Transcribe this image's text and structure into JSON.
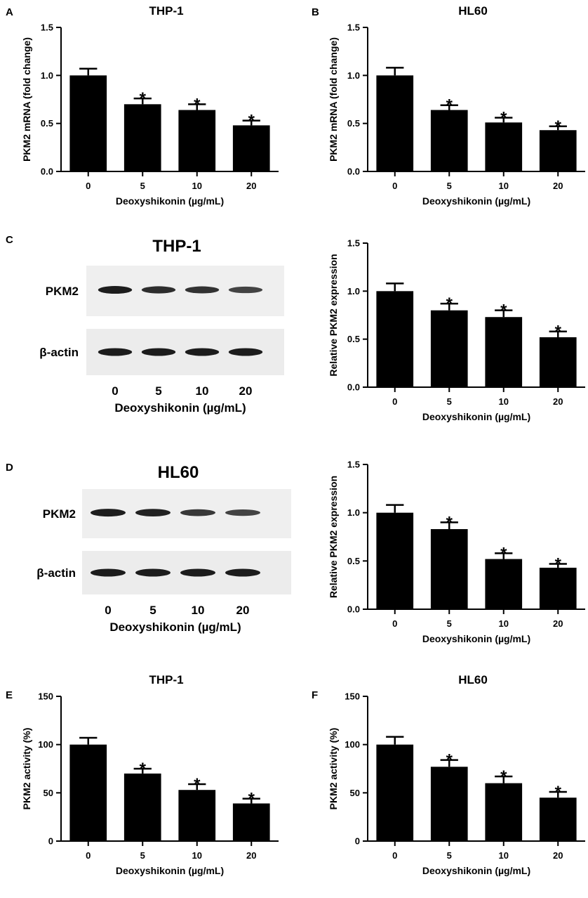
{
  "panel_letters": [
    "A",
    "B",
    "C",
    "D",
    "E",
    "F"
  ],
  "bar_color": "#000000",
  "chart_data": [
    {
      "id": "A",
      "type": "bar",
      "title": "THP-1",
      "categories": [
        "0",
        "5",
        "10",
        "20"
      ],
      "values": [
        1.0,
        0.7,
        0.64,
        0.48
      ],
      "errors": [
        0.07,
        0.06,
        0.06,
        0.05
      ],
      "significance": [
        "",
        "*",
        "*",
        "*"
      ],
      "xlabel": "Deoxyshikonin (µg/mL)",
      "ylabel": "PKM2 mRNA (fold change)",
      "ylim": [
        0,
        1.5
      ],
      "yticks": [
        "0.0",
        "0.5",
        "1.0",
        "1.5"
      ],
      "grid": false
    },
    {
      "id": "B",
      "type": "bar",
      "title": "HL60",
      "categories": [
        "0",
        "5",
        "10",
        "20"
      ],
      "values": [
        1.0,
        0.64,
        0.51,
        0.43
      ],
      "errors": [
        0.08,
        0.05,
        0.05,
        0.04
      ],
      "significance": [
        "",
        "*",
        "*",
        "*"
      ],
      "xlabel": "Deoxyshikonin (µg/mL)",
      "ylabel": "PKM2 mRNA (fold change)",
      "ylim": [
        0,
        1.5
      ],
      "yticks": [
        "0.0",
        "0.5",
        "1.0",
        "1.5"
      ],
      "grid": false
    },
    {
      "id": "C-bar",
      "type": "bar",
      "title": "",
      "categories": [
        "0",
        "5",
        "10",
        "20"
      ],
      "values": [
        1.0,
        0.8,
        0.73,
        0.52
      ],
      "errors": [
        0.08,
        0.07,
        0.07,
        0.06
      ],
      "significance": [
        "",
        "*",
        "*",
        "*"
      ],
      "xlabel": "Deoxyshikonin (µg/mL)",
      "ylabel": "Relative PKM2 expression",
      "ylim": [
        0,
        1.5
      ],
      "yticks": [
        "0.0",
        "0.5",
        "1.0",
        "1.5"
      ],
      "grid": false
    },
    {
      "id": "D-bar",
      "type": "bar",
      "title": "",
      "categories": [
        "0",
        "5",
        "10",
        "20"
      ],
      "values": [
        1.0,
        0.83,
        0.52,
        0.43
      ],
      "errors": [
        0.08,
        0.07,
        0.06,
        0.04
      ],
      "significance": [
        "",
        "*",
        "*",
        "*"
      ],
      "xlabel": "Deoxyshikonin (µg/mL)",
      "ylabel": "Relative PKM2 expression",
      "ylim": [
        0,
        1.5
      ],
      "yticks": [
        "0.0",
        "0.5",
        "1.0",
        "1.5"
      ],
      "grid": false
    },
    {
      "id": "E",
      "type": "bar",
      "title": "THP-1",
      "categories": [
        "0",
        "5",
        "10",
        "20"
      ],
      "values": [
        100,
        70,
        53,
        39
      ],
      "errors": [
        7,
        5,
        6,
        5
      ],
      "significance": [
        "",
        "*",
        "*",
        "*"
      ],
      "xlabel": "Deoxyshikonin (µg/mL)",
      "ylabel": "PKM2 activity (%)",
      "ylim": [
        0,
        150
      ],
      "yticks": [
        "0",
        "50",
        "100",
        "150"
      ],
      "grid": false
    },
    {
      "id": "F",
      "type": "bar",
      "title": "HL60",
      "categories": [
        "0",
        "5",
        "10",
        "20"
      ],
      "values": [
        100,
        77,
        60,
        45
      ],
      "errors": [
        8,
        7,
        7,
        6
      ],
      "significance": [
        "",
        "*",
        "*",
        "*"
      ],
      "xlabel": "Deoxyshikonin (µg/mL)",
      "ylabel": "PKM2 activity (%)",
      "ylim": [
        0,
        150
      ],
      "yticks": [
        "0",
        "50",
        "100",
        "150"
      ],
      "grid": false
    }
  ],
  "blots": [
    {
      "id": "C-blot",
      "title": "THP-1",
      "row_labels": [
        "PKM2",
        "β-actin"
      ],
      "lane_labels": [
        "0",
        "5",
        "10",
        "20"
      ],
      "xlabel": "Deoxyshikonin (µg/mL)",
      "pkm2_band_intensity": [
        1.0,
        0.85,
        0.8,
        0.65
      ],
      "actin_band_intensity": [
        1.0,
        1.0,
        1.0,
        1.0
      ]
    },
    {
      "id": "D-blot",
      "title": "HL60",
      "row_labels": [
        "PKM2",
        "β-actin"
      ],
      "lane_labels": [
        "0",
        "5",
        "10",
        "20"
      ],
      "xlabel": "Deoxyshikonin (µg/mL)",
      "pkm2_band_intensity": [
        1.0,
        0.95,
        0.75,
        0.65
      ],
      "actin_band_intensity": [
        1.0,
        1.0,
        1.0,
        1.0
      ]
    }
  ]
}
